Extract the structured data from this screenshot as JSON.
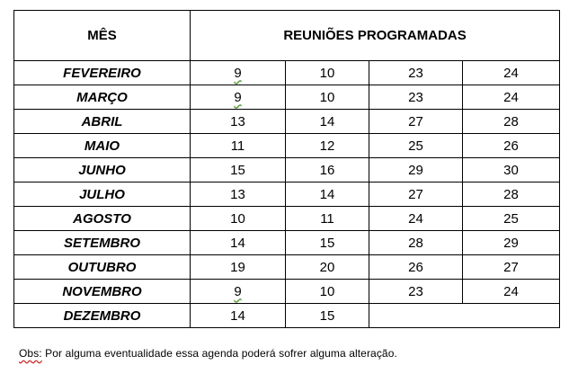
{
  "table": {
    "header": {
      "month_label": "MÊS",
      "meetings_label": "REUNIÕES PROGRAMADAS"
    },
    "rows": [
      {
        "month": "FEVEREIRO",
        "days": [
          "9",
          "10",
          "23",
          "24"
        ]
      },
      {
        "month": "MARÇO",
        "days": [
          "9",
          "10",
          "23",
          "24"
        ]
      },
      {
        "month": "ABRIL",
        "days": [
          "13",
          "14",
          "27",
          "28"
        ]
      },
      {
        "month": "MAIO",
        "days": [
          "11",
          "12",
          "25",
          "26"
        ]
      },
      {
        "month": "JUNHO",
        "days": [
          "15",
          "16",
          "29",
          "30"
        ]
      },
      {
        "month": "JULHO",
        "days": [
          "13",
          "14",
          "27",
          "28"
        ]
      },
      {
        "month": "AGOSTO",
        "days": [
          "10",
          "11",
          "24",
          "25"
        ]
      },
      {
        "month": "SETEMBRO",
        "days": [
          "14",
          "15",
          "28",
          "29"
        ]
      },
      {
        "month": "OUTUBRO",
        "days": [
          "19",
          "20",
          "26",
          "27"
        ]
      },
      {
        "month": "NOVEMBRO",
        "days": [
          "9",
          "10",
          "23",
          "24"
        ]
      },
      {
        "month": "DEZEMBRO",
        "days": [
          "14",
          "15"
        ]
      }
    ]
  },
  "note": {
    "label": "Obs:",
    "text": " Por alguma eventualidade essa agenda poderá sofrer alguma alteração."
  }
}
